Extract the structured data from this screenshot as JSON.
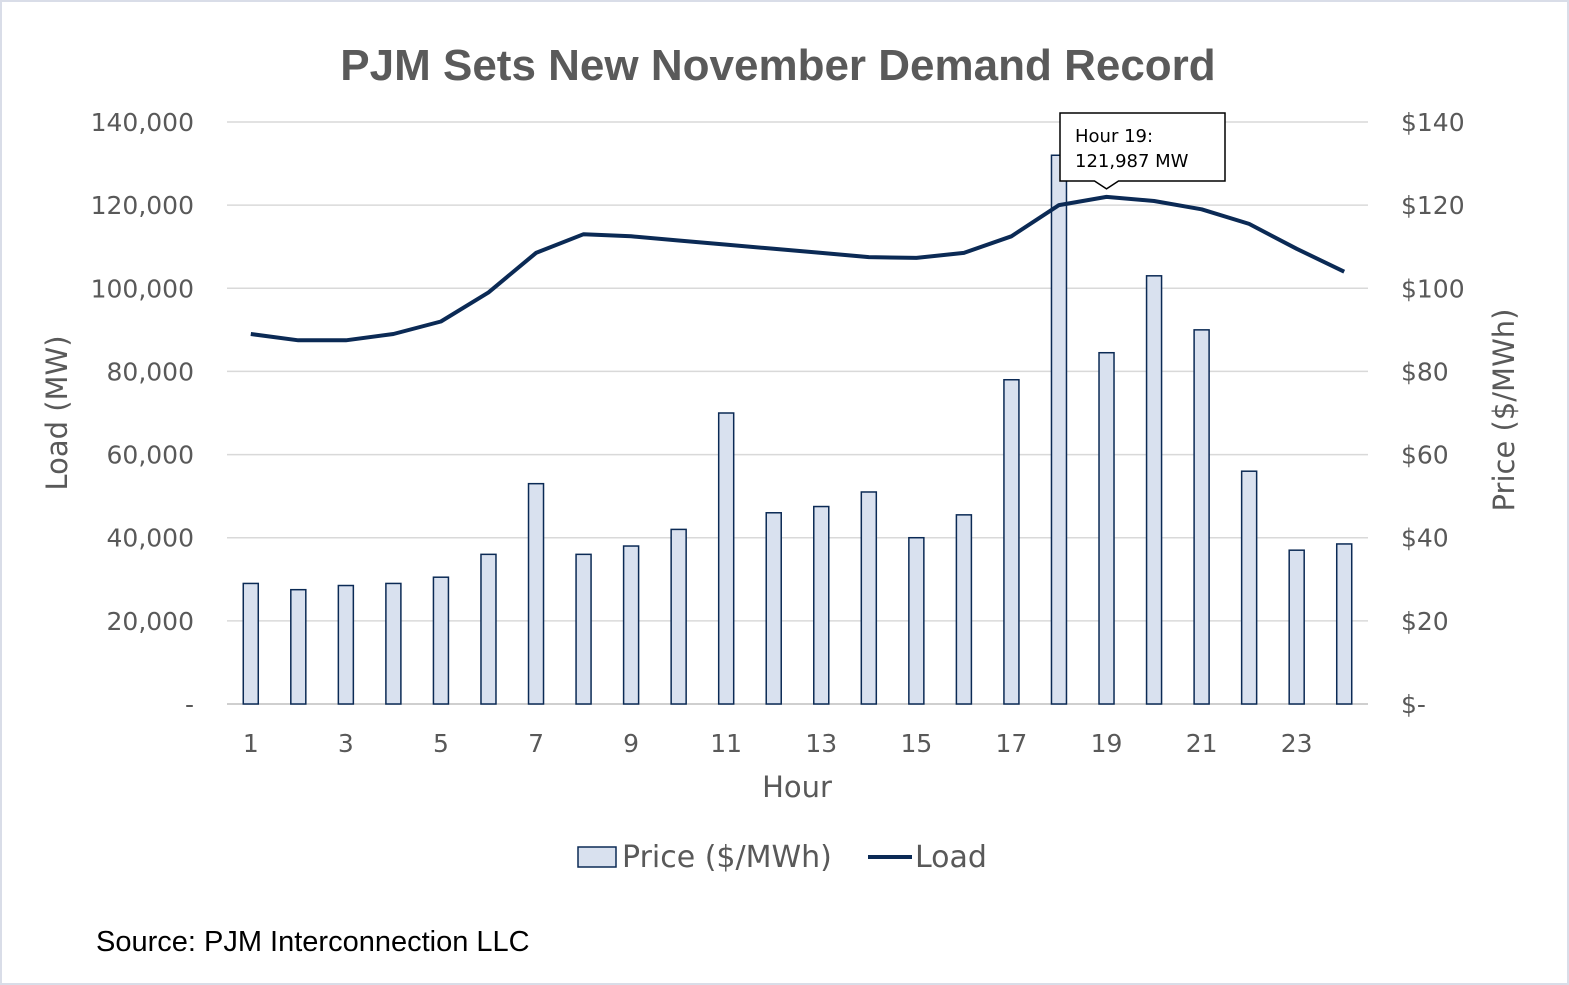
{
  "chart_data": {
    "type": "bar+line",
    "title": "PJM Sets New November Demand Record",
    "x": [
      1,
      2,
      3,
      4,
      5,
      6,
      7,
      8,
      9,
      10,
      11,
      12,
      13,
      14,
      15,
      16,
      17,
      18,
      19,
      20,
      21,
      22,
      23,
      24
    ],
    "x_tick_labels": [
      "1",
      "3",
      "5",
      "7",
      "9",
      "11",
      "13",
      "15",
      "17",
      "19",
      "21",
      "23"
    ],
    "xlabel": "Hour",
    "ylabel_left": "Load (MW)",
    "ylabel_right": "Price ($/MWh)",
    "ylim_left": [
      0,
      140000
    ],
    "ylim_right": [
      0,
      140
    ],
    "y_left_tick_labels": [
      "-",
      "20,000",
      "40,000",
      "60,000",
      "80,000",
      "100,000",
      "120,000",
      "140,000"
    ],
    "y_right_tick_labels": [
      "$-",
      "$20",
      "$40",
      "$60",
      "$80",
      "$100",
      "$120",
      "$140"
    ],
    "grid": true,
    "legend_position": "bottom",
    "series": [
      {
        "name": "Price ($/MWh)",
        "type": "bar",
        "axis": "right",
        "color": "#d9e1ef",
        "edge_color": "#0b2a55",
        "values": [
          29,
          27.5,
          28.5,
          29,
          30.5,
          36,
          53,
          36,
          38,
          42,
          70,
          46,
          47.5,
          51,
          40,
          45.5,
          78,
          132,
          84.5,
          103,
          90,
          56,
          37,
          38.5
        ]
      },
      {
        "name": "Load",
        "type": "line",
        "axis": "left",
        "color": "#0b2a55",
        "values": [
          89000,
          87500,
          87500,
          89000,
          92000,
          99000,
          108500,
          113000,
          112500,
          111500,
          110500,
          109500,
          108500,
          107500,
          107300,
          108500,
          112500,
          120000,
          121987,
          121000,
          119000,
          115500,
          109500,
          104000
        ]
      }
    ],
    "annotation": {
      "hour": 19,
      "line1": "Hour 19:",
      "line2": "121,987 MW"
    },
    "source": "Source: PJM Interconnection LLC"
  }
}
